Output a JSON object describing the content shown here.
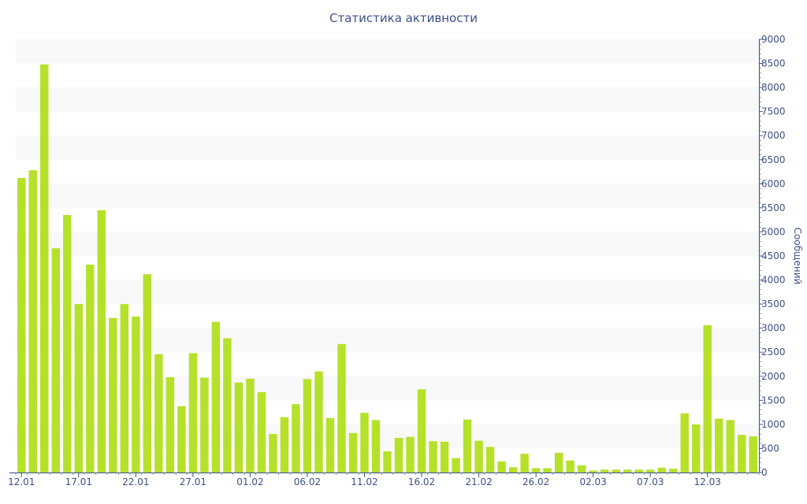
{
  "chart_data": {
    "type": "bar",
    "title": "Статистика активности",
    "ylabel": "Сообщений",
    "xlabel": "",
    "y_axis_side": "right",
    "ylim": [
      0,
      9000
    ],
    "y_ticks": [
      0,
      500,
      1000,
      1500,
      2000,
      2500,
      3000,
      3500,
      4000,
      4500,
      5000,
      5500,
      6000,
      6500,
      7000,
      7500,
      8000,
      8500,
      9000
    ],
    "x_tick_labels": [
      {
        "label": "12.01",
        "index": 0
      },
      {
        "label": "17.01",
        "index": 5
      },
      {
        "label": "22.01",
        "index": 10
      },
      {
        "label": "27.01",
        "index": 15
      },
      {
        "label": "01.02",
        "index": 20
      },
      {
        "label": "06.02",
        "index": 25
      },
      {
        "label": "11.02",
        "index": 30
      },
      {
        "label": "16.02",
        "index": 35
      },
      {
        "label": "21.02",
        "index": 40
      },
      {
        "label": "26.02",
        "index": 45
      },
      {
        "label": "02.03",
        "index": 50
      },
      {
        "label": "07.03",
        "index": 55
      },
      {
        "label": "12.03",
        "index": 60
      }
    ],
    "values": [
      6120,
      6280,
      8480,
      4660,
      5350,
      3500,
      4320,
      5450,
      3210,
      3500,
      3240,
      4120,
      2460,
      1980,
      1380,
      2480,
      1970,
      3130,
      2790,
      1870,
      1950,
      1670,
      800,
      1150,
      1420,
      1940,
      2100,
      1130,
      2670,
      820,
      1240,
      1090,
      440,
      720,
      740,
      1730,
      650,
      640,
      300,
      1100,
      660,
      530,
      230,
      110,
      390,
      90,
      90,
      410,
      250,
      150,
      40,
      60,
      60,
      60,
      60,
      60,
      100,
      80,
      1230,
      1000,
      3060,
      1120,
      1090,
      780,
      750
    ],
    "bar_color": "#b5e12b",
    "band_color": "#f8f8f8",
    "axis_color": "#3c4f8c",
    "grid": "alternating horizontal bands"
  }
}
